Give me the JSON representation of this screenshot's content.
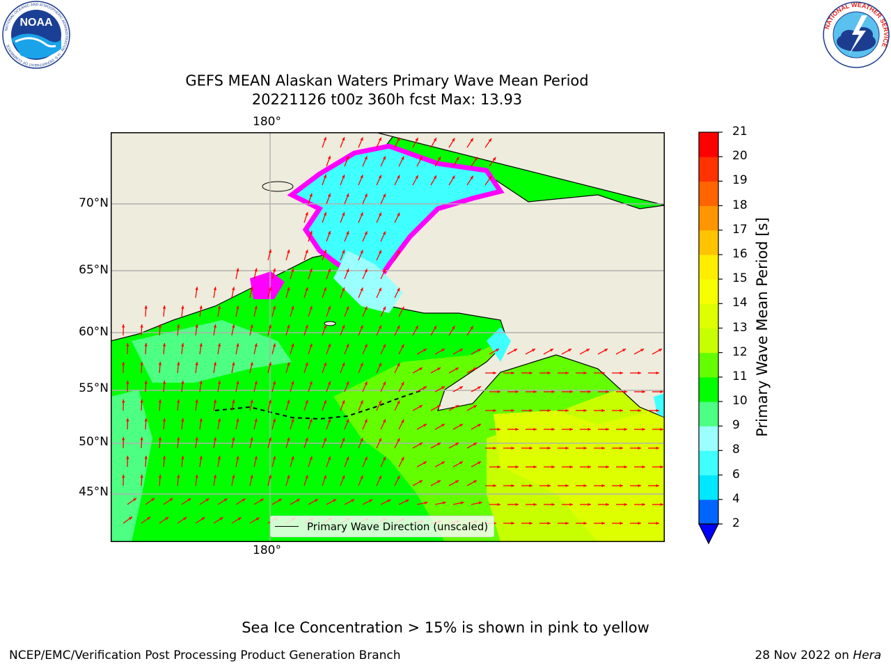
{
  "title_line1": "GEFS MEAN Alaskan Waters Primary Wave Mean Period",
  "title_line2": "20221126 t00z 360h fcst   Max: 13.93",
  "map": {
    "lon_label_top": "180°",
    "lon_label_bottom": "180°",
    "lat_labels": [
      "70°N",
      "65°N",
      "60°N",
      "55°N",
      "50°N",
      "45°N"
    ],
    "legend_label": "Primary Wave Direction (unscaled)",
    "arrow_color": "#ff0000",
    "land_color": "#eeecdc",
    "ice_colors": [
      "#ff00ff",
      "#ffb400",
      "#ffff00"
    ]
  },
  "colorbar": {
    "label": "Primary Wave Mean Period [s]",
    "ticks": [
      "2",
      "4",
      "6",
      "8",
      "9",
      "10",
      "11",
      "12",
      "13",
      "14",
      "15",
      "16",
      "17",
      "18",
      "19",
      "20",
      "21"
    ],
    "colors": [
      "#0064ff",
      "#00e8ff",
      "#40ffff",
      "#9bffff",
      "#4dff82",
      "#00ff00",
      "#63ff00",
      "#c8ff00",
      "#ddff00",
      "#f5ff00",
      "#ffed00",
      "#ffc300",
      "#ff9600",
      "#ff6400",
      "#ff3200",
      "#ff0000"
    ],
    "extend_color": "#0000ff"
  },
  "footnote": "Sea Ice Concentration > 15% is shown in pink to yellow",
  "credit_left": "NCEP/EMC/Verification Post Processing Product Generation Branch",
  "credit_right_date": "28 Nov 2022 on ",
  "credit_right_host": "Hera",
  "logos": {
    "noaa_text": "NOAA",
    "noaa_ring": "NATIONAL OCEANIC AND ATMOSPHERIC ADMINISTRATION · U.S. DEPARTMENT OF COMMERCE",
    "nws_ring": "NATIONAL WEATHER SERVICE"
  }
}
